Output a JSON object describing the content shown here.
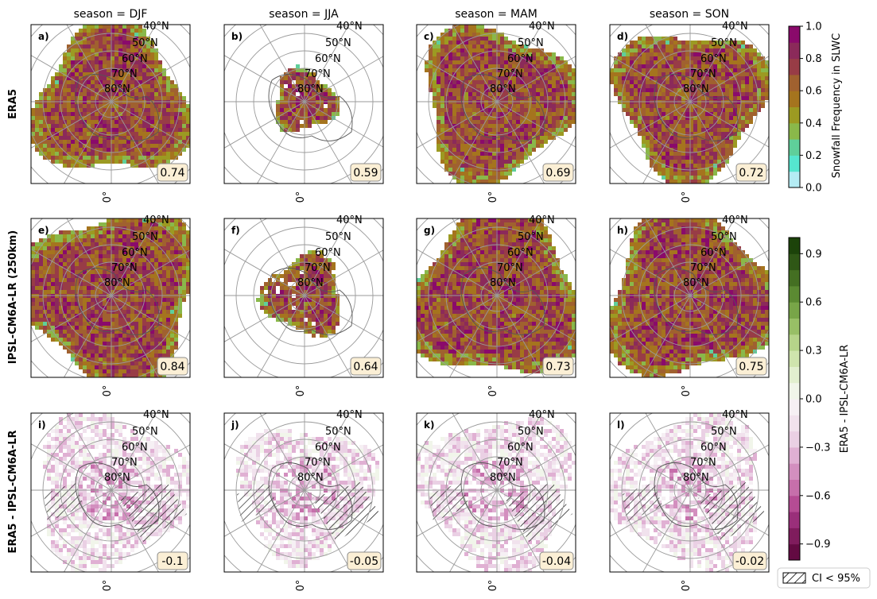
{
  "chart_data": {
    "type": "heatmap",
    "projection": "north polar stereographic",
    "columns": [
      "season = DJF",
      "season = JJA",
      "season = MAM",
      "season = SON"
    ],
    "rows": [
      "ERA5",
      "IPSL-CM6A-LR (250km)",
      "ERA5 - IPSL-CM6A-LR"
    ],
    "latitude_labels": [
      "40°N",
      "50°N",
      "60°N",
      "70°N",
      "80°N"
    ],
    "longitude_label": "0°",
    "panels": [
      {
        "label": "a)",
        "row": 0,
        "col": 0,
        "value": "0.74",
        "coverage": 0.8
      },
      {
        "label": "b)",
        "row": 0,
        "col": 1,
        "value": "0.59",
        "coverage": 0.33
      },
      {
        "label": "c)",
        "row": 0,
        "col": 2,
        "value": "0.69",
        "coverage": 0.8
      },
      {
        "label": "d)",
        "row": 0,
        "col": 3,
        "value": "0.72",
        "coverage": 0.78
      },
      {
        "label": "e)",
        "row": 1,
        "col": 0,
        "value": "0.84",
        "coverage": 0.92
      },
      {
        "label": "f)",
        "row": 1,
        "col": 1,
        "value": "0.64",
        "coverage": 0.42
      },
      {
        "label": "g)",
        "row": 1,
        "col": 2,
        "value": "0.73",
        "coverage": 0.9
      },
      {
        "label": "h)",
        "row": 1,
        "col": 3,
        "value": "0.75",
        "coverage": 0.88
      },
      {
        "label": "i)",
        "row": 2,
        "col": 0,
        "value": "-0.1",
        "coverage": 0.8
      },
      {
        "label": "j)",
        "row": 2,
        "col": 1,
        "value": "-0.05",
        "coverage": 0.7
      },
      {
        "label": "k)",
        "row": 2,
        "col": 2,
        "value": "-0.04",
        "coverage": 0.8
      },
      {
        "label": "l)",
        "row": 2,
        "col": 3,
        "value": "-0.02",
        "coverage": 0.8
      }
    ],
    "colorbar_frequency": {
      "label": "Snowfall Frequency in SLWC",
      "range": [
        0.0,
        1.0
      ],
      "ticks": [
        "0.0",
        "0.2",
        "0.4",
        "0.6",
        "0.8",
        "1.0"
      ],
      "colors": [
        "#b4ecf4",
        "#55e6cf",
        "#5fcf9a",
        "#8ab84a",
        "#9c9a22",
        "#a5741e",
        "#a0612f",
        "#983c46",
        "#8b2a5a",
        "#8a0a6b"
      ]
    },
    "colorbar_difference": {
      "label": "ERA5 - IPSL-CM6A-LR",
      "range": [
        -1.0,
        1.0
      ],
      "ticks": [
        "0.9",
        "0.6",
        "0.3",
        "0.0",
        "−0.3",
        "−0.6",
        "−0.9"
      ],
      "colors": [
        "#630a42",
        "#7f1c5d",
        "#9a2f7a",
        "#b54c94",
        "#c66fab",
        "#d38fbf",
        "#e0b0d3",
        "#ead0e4",
        "#f1e2ed",
        "#f6f0f4",
        "#f1f5ea",
        "#e2efcf",
        "#cfe4ad",
        "#b6d48a",
        "#98bf66",
        "#78a548",
        "#5b8a32",
        "#446f22",
        "#2f5716",
        "#1c430a"
      ]
    },
    "legend": "CI < 95%"
  }
}
